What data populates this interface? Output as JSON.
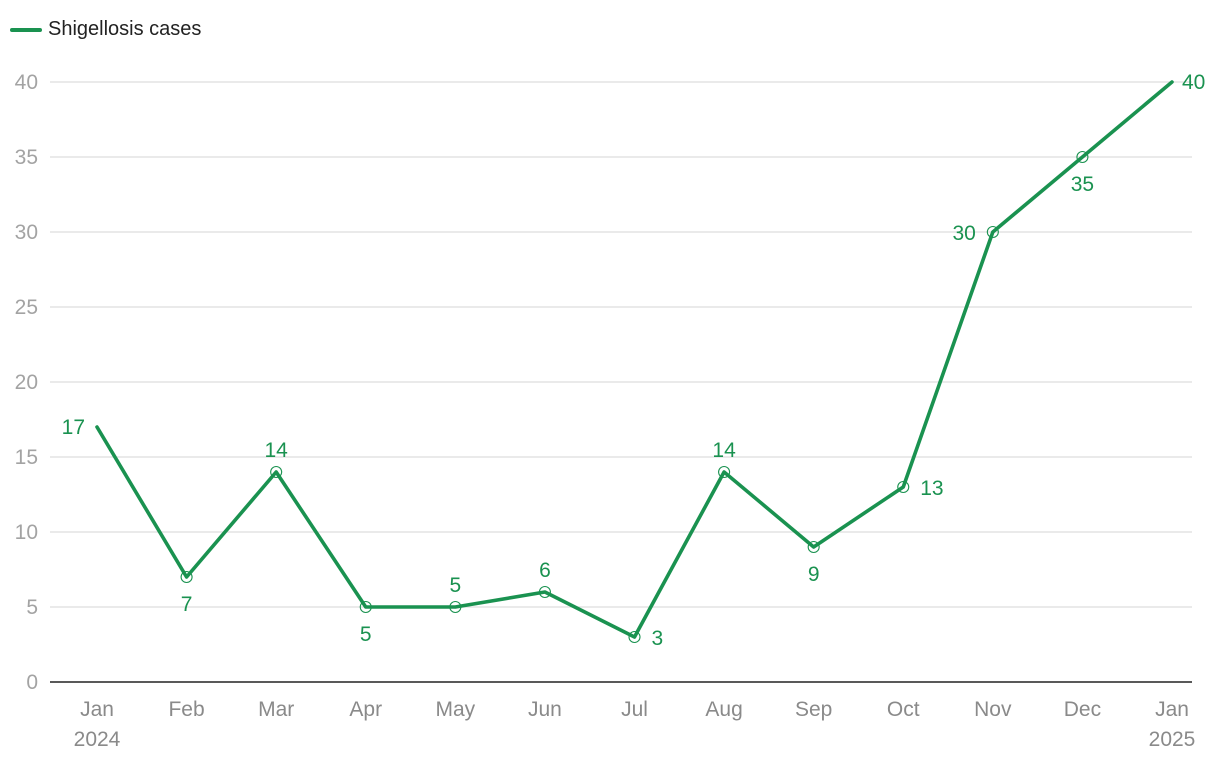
{
  "colors": {
    "series": "#1a9250",
    "grid": "#dedede",
    "axis": "#222222"
  },
  "chart_data": {
    "type": "line",
    "categories": [
      "Jan",
      "Feb",
      "Mar",
      "Apr",
      "May",
      "Jun",
      "Jul",
      "Aug",
      "Sep",
      "Oct",
      "Nov",
      "Dec",
      "Jan"
    ],
    "category_sublabels": [
      "2024",
      "",
      "",
      "",
      "",
      "",
      "",
      "",
      "",
      "",
      "",
      "",
      "2025"
    ],
    "series": [
      {
        "name": "Shigellosis cases",
        "values": [
          17,
          7,
          14,
          5,
          5,
          6,
          3,
          14,
          9,
          13,
          30,
          35,
          40
        ]
      }
    ],
    "data_labels": [
      "17",
      "7",
      "14",
      "5",
      "5",
      "6",
      "3",
      "14",
      "9",
      "13",
      "30",
      "35",
      "40"
    ],
    "yticks": [
      "0",
      "5",
      "10",
      "15",
      "20",
      "25",
      "30",
      "35",
      "40"
    ],
    "ylim": [
      0,
      40
    ],
    "grid": true,
    "legend": "top-left"
  }
}
